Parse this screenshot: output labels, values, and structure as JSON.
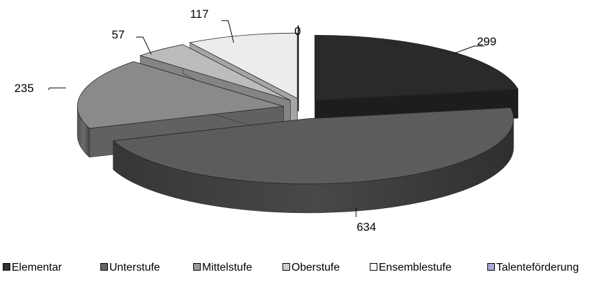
{
  "chart_data": {
    "type": "pie",
    "categories": [
      "Elementar",
      "Unterstufe",
      "Mittelstufe",
      "Oberstufe",
      "Ensemblestufe",
      "Talenteförderung"
    ],
    "values": [
      299,
      634,
      235,
      57,
      117,
      0
    ],
    "data_labels": [
      "299",
      "634",
      "235",
      "57",
      "117",
      "0"
    ],
    "colors": [
      "#2a2a2a",
      "#5c5c5c",
      "#8a8a8a",
      "#bcbcbc",
      "#ececec",
      "#ffffff"
    ],
    "legend_swatch_colors": [
      "#333333",
      "#666666",
      "#999999",
      "#d0d0d0",
      "#ffffff",
      "#a9a9d6"
    ],
    "style": "3d-exploded",
    "legend_position": "bottom",
    "title": ""
  }
}
